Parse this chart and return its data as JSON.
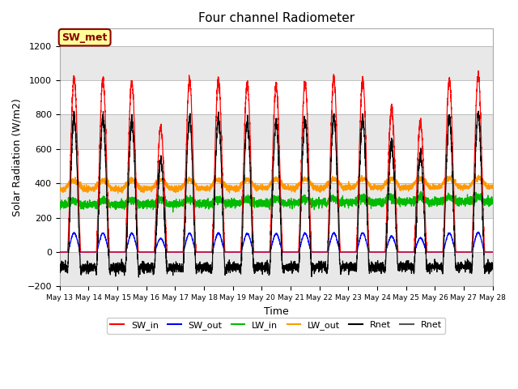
{
  "title": "Four channel Radiometer",
  "xlabel": "Time",
  "ylabel": "Solar Radiation (W/m2)",
  "ylim": [
    -200,
    1300
  ],
  "yticks": [
    -200,
    0,
    200,
    400,
    600,
    800,
    1000,
    1200
  ],
  "annotation_text": "SW_met",
  "annotation_bg": "#ffff99",
  "annotation_border": "#8b0000",
  "annotation_text_color": "#8b0000",
  "fig_bg": "#ffffff",
  "plot_bg": "#ffffff",
  "colors": {
    "SW_in": "#ff0000",
    "SW_out": "#0000ff",
    "LW_in": "#00bb00",
    "LW_out": "#ff9900",
    "Rnet_black": "#000000",
    "Rnet_dark": "#555555"
  },
  "n_days": 15,
  "start_day": 13,
  "sw_in_peaks": [
    1010,
    1000,
    990,
    720,
    1000,
    1005,
    980,
    970,
    990,
    1005,
    1005,
    830,
    750,
    1005,
    1030
  ],
  "grid_colors": [
    "#e8e8e8",
    "#ffffff"
  ],
  "legend_labels": [
    "SW_in",
    "SW_out",
    "LW_in",
    "LW_out",
    "Rnet",
    "Rnet"
  ]
}
